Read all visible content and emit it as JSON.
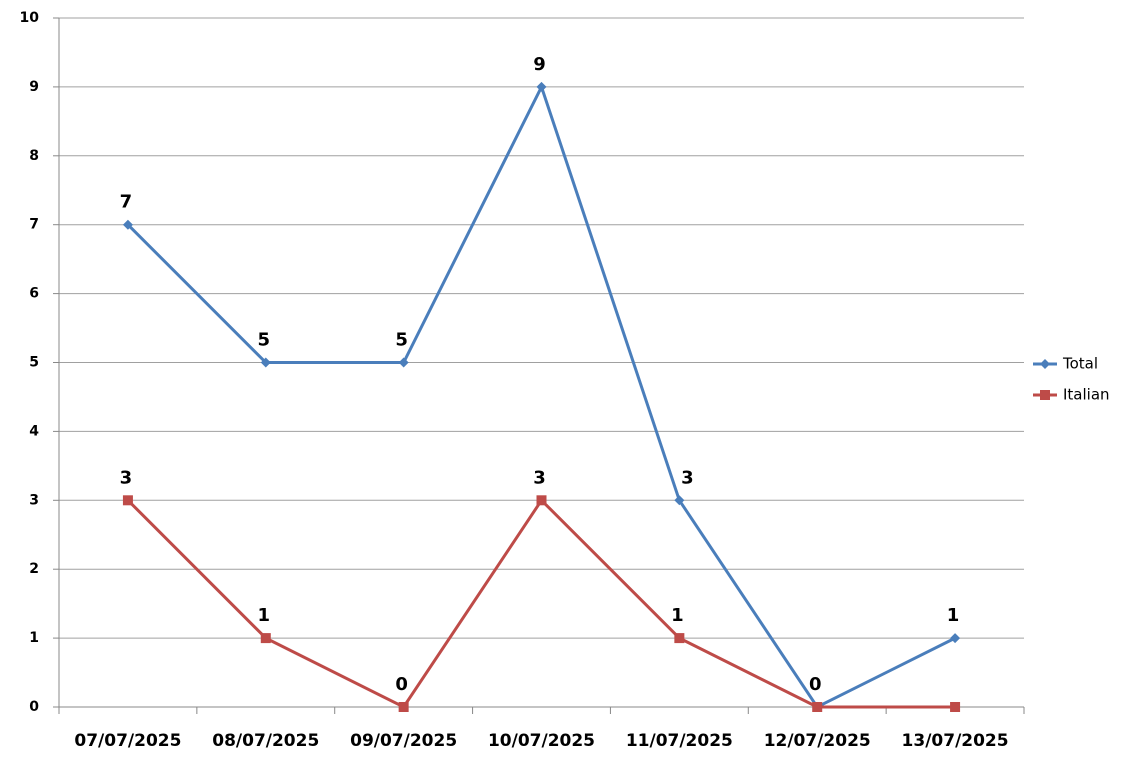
{
  "chart_data": {
    "type": "line",
    "categories": [
      "07/07/2025",
      "08/07/2025",
      "09/07/2025",
      "10/07/2025",
      "11/07/2025",
      "12/07/2025",
      "13/07/2025"
    ],
    "series": [
      {
        "name": "Total",
        "color": "#4a7ebb",
        "marker": "diamond",
        "values": [
          7,
          5,
          5,
          9,
          3,
          0,
          1
        ],
        "value_labels": [
          "7",
          "5",
          "5",
          "9",
          "3",
          null,
          "1"
        ]
      },
      {
        "name": "Italian",
        "color": "#be4b48",
        "marker": "square",
        "values": [
          3,
          1,
          0,
          3,
          1,
          0,
          0
        ],
        "value_labels": [
          "3",
          "1",
          "0",
          "3",
          "1",
          "0",
          null
        ]
      }
    ],
    "ylim": [
      0,
      10
    ],
    "yticks": [
      0,
      1,
      2,
      3,
      4,
      5,
      6,
      7,
      8,
      9,
      10
    ],
    "grid": true,
    "legend": "right"
  }
}
